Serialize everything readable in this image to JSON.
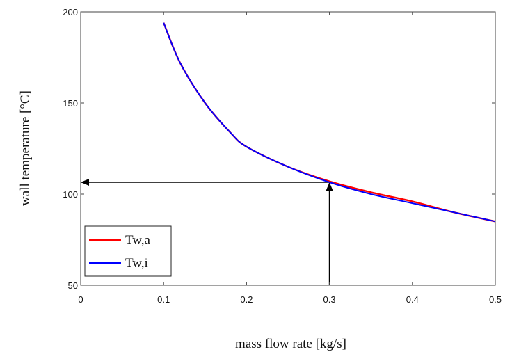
{
  "chart_data": {
    "type": "line",
    "xlabel": "mass flow rate [kg/s]",
    "ylabel": "wall temperature [°C]",
    "xlim": [
      0,
      0.5
    ],
    "ylim": [
      50,
      200
    ],
    "xticks": [
      "0",
      "0.1",
      "0.2",
      "0.3",
      "0.4",
      "0.5"
    ],
    "yticks": [
      "50",
      "100",
      "150",
      "200"
    ],
    "grid": false,
    "legend_position": "bottom-left",
    "series": [
      {
        "name": "Tw,a",
        "color": "#ff0000",
        "x": [
          0.1,
          0.12,
          0.15,
          0.18,
          0.2,
          0.25,
          0.3,
          0.35,
          0.4,
          0.45,
          0.5
        ],
        "y": [
          194,
          172,
          150,
          134,
          126,
          115,
          107,
          101,
          96,
          90,
          85
        ]
      },
      {
        "name": "Tw,i",
        "color": "#0000ff",
        "x": [
          0.1,
          0.12,
          0.15,
          0.18,
          0.2,
          0.25,
          0.3,
          0.35,
          0.4,
          0.45,
          0.5
        ],
        "y": [
          194,
          172,
          150,
          134,
          126,
          115,
          106.5,
          100,
          95,
          90,
          85
        ]
      }
    ],
    "annotations": [
      {
        "type": "arrow",
        "from": [
          0.3,
          50
        ],
        "to": [
          0.3,
          106.5
        ]
      },
      {
        "type": "arrow",
        "from": [
          0.3,
          106.5
        ],
        "to": [
          0,
          106.5
        ]
      }
    ]
  }
}
